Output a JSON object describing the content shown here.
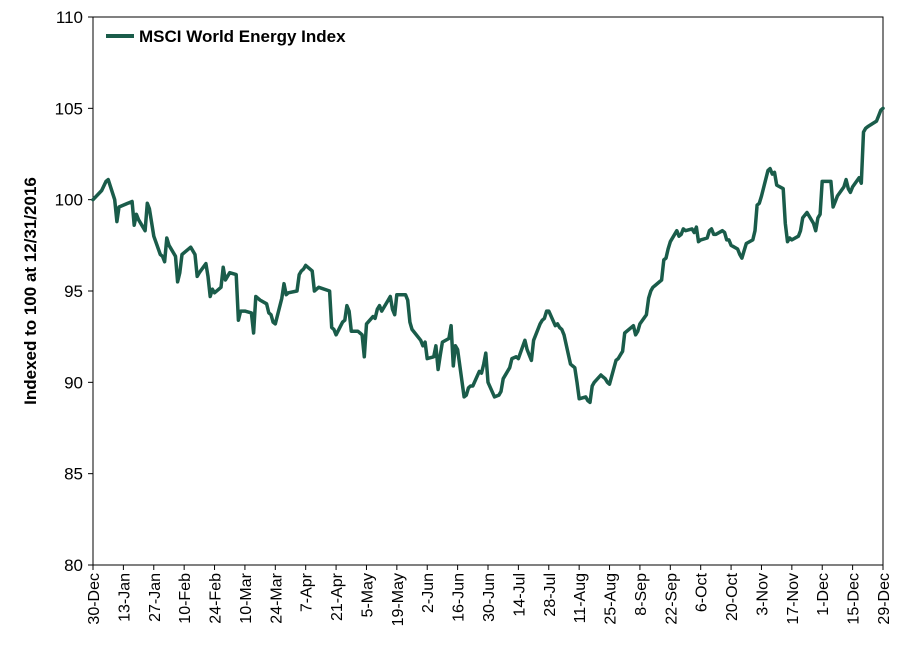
{
  "chart_data": {
    "type": "line",
    "title": "",
    "xlabel": "",
    "ylabel": "Indexed to 100 at 12/31/2016",
    "ylim": [
      80,
      110
    ],
    "yticks": [
      80,
      85,
      90,
      95,
      100,
      105,
      110
    ],
    "grid": false,
    "legend_position": "top-left",
    "line_color": "#1a5c4a",
    "x_tick_labels": [
      "30-Dec",
      "13-Jan",
      "27-Jan",
      "10-Feb",
      "24-Feb",
      "10-Mar",
      "24-Mar",
      "7-Apr",
      "21-Apr",
      "5-May",
      "19-May",
      "2-Jun",
      "16-Jun",
      "30-Jun",
      "14-Jul",
      "28-Jul",
      "11-Aug",
      "25-Aug",
      "8-Sep",
      "22-Sep",
      "6-Oct",
      "20-Oct",
      "3-Nov",
      "17-Nov",
      "1-Dec",
      "15-Dec",
      "29-Dec"
    ],
    "series": [
      {
        "name": "MSCI World Energy Index",
        "points": [
          [
            "30-Dec",
            100.0
          ],
          [
            "3-Jan",
            100.5
          ],
          [
            "5-Jan",
            101.0
          ],
          [
            "6-Jan",
            101.1
          ],
          [
            "9-Jan",
            100.0
          ],
          [
            "10-Jan",
            98.8
          ],
          [
            "11-Jan",
            99.6
          ],
          [
            "13-Jan",
            99.7
          ],
          [
            "17-Jan",
            99.9
          ],
          [
            "18-Jan",
            98.6
          ],
          [
            "19-Jan",
            99.2
          ],
          [
            "20-Jan",
            98.9
          ],
          [
            "23-Jan",
            98.3
          ],
          [
            "24-Jan",
            99.8
          ],
          [
            "25-Jan",
            99.5
          ],
          [
            "27-Jan",
            98.0
          ],
          [
            "30-Jan",
            97.0
          ],
          [
            "31-Jan",
            96.9
          ],
          [
            "1-Feb",
            96.6
          ],
          [
            "2-Feb",
            97.9
          ],
          [
            "3-Feb",
            97.5
          ],
          [
            "6-Feb",
            96.9
          ],
          [
            "7-Feb",
            95.5
          ],
          [
            "8-Feb",
            96.0
          ],
          [
            "9-Feb",
            97.0
          ],
          [
            "13-Feb",
            97.4
          ],
          [
            "15-Feb",
            97.0
          ],
          [
            "16-Feb",
            95.8
          ],
          [
            "17-Feb",
            96.0
          ],
          [
            "20-Feb",
            96.5
          ],
          [
            "21-Feb",
            95.8
          ],
          [
            "22-Feb",
            94.7
          ],
          [
            "23-Feb",
            95.1
          ],
          [
            "24-Feb",
            94.9
          ],
          [
            "27-Feb",
            95.2
          ],
          [
            "28-Feb",
            96.3
          ],
          [
            "1-Mar",
            95.6
          ],
          [
            "3-Mar",
            96.0
          ],
          [
            "6-Mar",
            95.9
          ],
          [
            "7-Mar",
            93.4
          ],
          [
            "8-Mar",
            93.9
          ],
          [
            "10-Mar",
            93.9
          ],
          [
            "13-Mar",
            93.8
          ],
          [
            "14-Mar",
            92.7
          ],
          [
            "15-Mar",
            94.7
          ],
          [
            "17-Mar",
            94.5
          ],
          [
            "20-Mar",
            94.3
          ],
          [
            "21-Mar",
            93.8
          ],
          [
            "22-Mar",
            93.7
          ],
          [
            "23-Mar",
            93.3
          ],
          [
            "24-Mar",
            93.2
          ],
          [
            "27-Mar",
            94.6
          ],
          [
            "28-Mar",
            95.4
          ],
          [
            "29-Mar",
            94.8
          ],
          [
            "30-Mar",
            94.9
          ],
          [
            "3-Apr",
            95.0
          ],
          [
            "4-Apr",
            95.9
          ],
          [
            "5-Apr",
            96.1
          ],
          [
            "6-Apr",
            96.2
          ],
          [
            "7-Apr",
            96.4
          ],
          [
            "10-Apr",
            96.1
          ],
          [
            "11-Apr",
            95.0
          ],
          [
            "13-Apr",
            95.2
          ],
          [
            "18-Apr",
            95.0
          ],
          [
            "19-Apr",
            93.0
          ],
          [
            "20-Apr",
            92.9
          ],
          [
            "21-Apr",
            92.6
          ],
          [
            "24-Apr",
            93.3
          ],
          [
            "25-Apr",
            93.4
          ],
          [
            "26-Apr",
            94.2
          ],
          [
            "27-Apr",
            93.9
          ],
          [
            "28-Apr",
            92.8
          ],
          [
            "1-May",
            92.8
          ],
          [
            "2-May",
            92.7
          ],
          [
            "3-May",
            92.6
          ],
          [
            "4-May",
            91.4
          ],
          [
            "5-May",
            93.2
          ],
          [
            "8-May",
            93.6
          ],
          [
            "9-May",
            93.5
          ],
          [
            "10-May",
            94.0
          ],
          [
            "11-May",
            94.2
          ],
          [
            "12-May",
            93.9
          ],
          [
            "15-May",
            94.5
          ],
          [
            "16-May",
            94.7
          ],
          [
            "17-May",
            94.0
          ],
          [
            "18-May",
            93.7
          ],
          [
            "19-May",
            94.8
          ],
          [
            "22-May",
            94.8
          ],
          [
            "23-May",
            94.8
          ],
          [
            "24-May",
            94.5
          ],
          [
            "25-May",
            93.3
          ],
          [
            "26-May",
            92.9
          ],
          [
            "30-May",
            92.3
          ],
          [
            "31-May",
            92.0
          ],
          [
            "1-Jun",
            92.2
          ],
          [
            "2-Jun",
            91.3
          ],
          [
            "5-Jun",
            91.4
          ],
          [
            "6-Jun",
            92.0
          ],
          [
            "7-Jun",
            90.7
          ],
          [
            "8-Jun",
            91.5
          ],
          [
            "9-Jun",
            92.2
          ],
          [
            "12-Jun",
            92.4
          ],
          [
            "13-Jun",
            93.1
          ],
          [
            "14-Jun",
            90.9
          ],
          [
            "15-Jun",
            92.0
          ],
          [
            "16-Jun",
            91.8
          ],
          [
            "19-Jun",
            89.2
          ],
          [
            "20-Jun",
            89.3
          ],
          [
            "21-Jun",
            89.7
          ],
          [
            "22-Jun",
            89.8
          ],
          [
            "23-Jun",
            89.8
          ],
          [
            "26-Jun",
            90.6
          ],
          [
            "27-Jun",
            90.5
          ],
          [
            "28-Jun",
            91.0
          ],
          [
            "29-Jun",
            91.6
          ],
          [
            "30-Jun",
            90.0
          ],
          [
            "3-Jul",
            89.2
          ],
          [
            "5-Jul",
            89.3
          ],
          [
            "6-Jul",
            89.5
          ],
          [
            "7-Jul",
            90.2
          ],
          [
            "10-Jul",
            90.8
          ],
          [
            "11-Jul",
            91.3
          ],
          [
            "13-Jul",
            91.4
          ],
          [
            "14-Jul",
            91.3
          ],
          [
            "17-Jul",
            92.3
          ],
          [
            "18-Jul",
            91.8
          ],
          [
            "19-Jul",
            91.5
          ],
          [
            "20-Jul",
            91.2
          ],
          [
            "21-Jul",
            92.3
          ],
          [
            "24-Jul",
            93.2
          ],
          [
            "25-Jul",
            93.4
          ],
          [
            "26-Jul",
            93.5
          ],
          [
            "27-Jul",
            93.9
          ],
          [
            "28-Jul",
            93.9
          ],
          [
            "31-Jul",
            93.1
          ],
          [
            "1-Aug",
            93.2
          ],
          [
            "2-Aug",
            93.0
          ],
          [
            "3-Aug",
            92.9
          ],
          [
            "4-Aug",
            92.6
          ],
          [
            "7-Aug",
            91.0
          ],
          [
            "8-Aug",
            90.9
          ],
          [
            "9-Aug",
            90.8
          ],
          [
            "10-Aug",
            90.0
          ],
          [
            "11-Aug",
            89.1
          ],
          [
            "14-Aug",
            89.2
          ],
          [
            "15-Aug",
            89.0
          ],
          [
            "16-Aug",
            88.9
          ],
          [
            "17-Aug",
            89.8
          ],
          [
            "18-Aug",
            90.0
          ],
          [
            "21-Aug",
            90.4
          ],
          [
            "22-Aug",
            90.3
          ],
          [
            "23-Aug",
            90.2
          ],
          [
            "24-Aug",
            90.0
          ],
          [
            "25-Aug",
            89.9
          ],
          [
            "28-Aug",
            91.2
          ],
          [
            "29-Aug",
            91.3
          ],
          [
            "30-Aug",
            91.5
          ],
          [
            "31-Aug",
            91.7
          ],
          [
            "1-Sep",
            92.7
          ],
          [
            "5-Sep",
            93.1
          ],
          [
            "6-Sep",
            92.6
          ],
          [
            "7-Sep",
            92.8
          ],
          [
            "8-Sep",
            93.2
          ],
          [
            "11-Sep",
            93.7
          ],
          [
            "12-Sep",
            94.6
          ],
          [
            "13-Sep",
            95.0
          ],
          [
            "14-Sep",
            95.2
          ],
          [
            "15-Sep",
            95.3
          ],
          [
            "18-Sep",
            95.6
          ],
          [
            "19-Sep",
            96.7
          ],
          [
            "20-Sep",
            96.8
          ],
          [
            "21-Sep",
            97.3
          ],
          [
            "22-Sep",
            97.7
          ],
          [
            "25-Sep",
            98.3
          ],
          [
            "26-Sep",
            98.0
          ],
          [
            "27-Sep",
            98.1
          ],
          [
            "28-Sep",
            98.4
          ],
          [
            "29-Sep",
            98.3
          ],
          [
            "2-Oct",
            98.4
          ],
          [
            "3-Oct",
            98.2
          ],
          [
            "4-Oct",
            98.5
          ],
          [
            "5-Oct",
            97.7
          ],
          [
            "6-Oct",
            97.8
          ],
          [
            "9-Oct",
            97.9
          ],
          [
            "10-Oct",
            98.3
          ],
          [
            "11-Oct",
            98.4
          ],
          [
            "12-Oct",
            98.1
          ],
          [
            "13-Oct",
            98.1
          ],
          [
            "16-Oct",
            98.3
          ],
          [
            "17-Oct",
            98.2
          ],
          [
            "18-Oct",
            97.8
          ],
          [
            "19-Oct",
            97.8
          ],
          [
            "20-Oct",
            97.5
          ],
          [
            "23-Oct",
            97.3
          ],
          [
            "24-Oct",
            97.0
          ],
          [
            "25-Oct",
            96.8
          ],
          [
            "26-Oct",
            97.2
          ],
          [
            "27-Oct",
            97.6
          ],
          [
            "30-Oct",
            97.8
          ],
          [
            "31-Oct",
            98.3
          ],
          [
            "1-Nov",
            99.7
          ],
          [
            "2-Nov",
            99.8
          ],
          [
            "3-Nov",
            100.2
          ],
          [
            "6-Nov",
            101.6
          ],
          [
            "7-Nov",
            101.7
          ],
          [
            "8-Nov",
            101.4
          ],
          [
            "9-Nov",
            101.5
          ],
          [
            "10-Nov",
            100.8
          ],
          [
            "13-Nov",
            100.6
          ],
          [
            "14-Nov",
            98.7
          ],
          [
            "15-Nov",
            97.7
          ],
          [
            "16-Nov",
            97.9
          ],
          [
            "17-Nov",
            97.8
          ],
          [
            "20-Nov",
            98.0
          ],
          [
            "21-Nov",
            98.3
          ],
          [
            "22-Nov",
            99.0
          ],
          [
            "24-Nov",
            99.3
          ],
          [
            "27-Nov",
            98.7
          ],
          [
            "28-Nov",
            98.3
          ],
          [
            "29-Nov",
            99.0
          ],
          [
            "30-Nov",
            99.2
          ],
          [
            "1-Dec",
            101.0
          ],
          [
            "4-Dec",
            101.0
          ],
          [
            "5-Dec",
            101.0
          ],
          [
            "6-Dec",
            99.6
          ],
          [
            "7-Dec",
            99.9
          ],
          [
            "8-Dec",
            100.2
          ],
          [
            "11-Dec",
            100.7
          ],
          [
            "12-Dec",
            101.1
          ],
          [
            "13-Dec",
            100.6
          ],
          [
            "14-Dec",
            100.4
          ],
          [
            "15-Dec",
            100.7
          ],
          [
            "18-Dec",
            101.2
          ],
          [
            "19-Dec",
            100.9
          ],
          [
            "20-Dec",
            103.7
          ],
          [
            "21-Dec",
            103.9
          ],
          [
            "22-Dec",
            104.0
          ],
          [
            "26-Dec",
            104.3
          ],
          [
            "27-Dec",
            104.6
          ],
          [
            "28-Dec",
            104.9
          ],
          [
            "29-Dec",
            105.0
          ]
        ]
      }
    ]
  }
}
